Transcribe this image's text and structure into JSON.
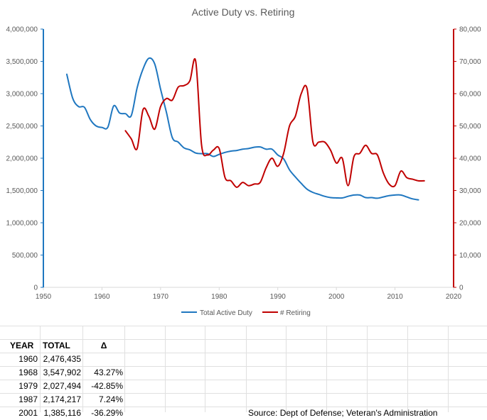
{
  "chart_data": {
    "type": "line",
    "title": "Active Duty vs. Retiring",
    "x_axis": {
      "min": 1950,
      "max": 2020,
      "ticks": [
        "1950",
        "1960",
        "1970",
        "1980",
        "1990",
        "2000",
        "2010",
        "2020"
      ]
    },
    "y_left": {
      "min": 0,
      "max": 4000000,
      "ticks": [
        "0",
        "500,000",
        "1,000,000",
        "1,500,000",
        "2,000,000",
        "2,500,000",
        "3,000,000",
        "3,500,000",
        "4,000,000"
      ]
    },
    "y_right": {
      "min": 0,
      "max": 80000,
      "ticks": [
        "0",
        "10,000",
        "20,000",
        "30,000",
        "40,000",
        "50,000",
        "60,000",
        "70,000",
        "80,000"
      ]
    },
    "series": [
      {
        "name": "Total Active Duty",
        "axis": "left",
        "color": "#1f77c0",
        "x": [
          1954,
          1955,
          1956,
          1957,
          1958,
          1959,
          1960,
          1961,
          1962,
          1963,
          1964,
          1965,
          1966,
          1967,
          1968,
          1969,
          1970,
          1971,
          1972,
          1973,
          1974,
          1975,
          1976,
          1977,
          1978,
          1979,
          1980,
          1981,
          1982,
          1983,
          1984,
          1985,
          1986,
          1987,
          1988,
          1989,
          1990,
          1991,
          1992,
          1993,
          1994,
          1995,
          1996,
          1997,
          1998,
          1999,
          2000,
          2001,
          2002,
          2003,
          2004,
          2005,
          2006,
          2007,
          2008,
          2009,
          2010,
          2011,
          2012,
          2013,
          2014
        ],
        "values": [
          3300000,
          2930000,
          2800000,
          2790000,
          2600000,
          2500000,
          2476435,
          2480000,
          2810000,
          2700000,
          2690000,
          2660000,
          3090000,
          3380000,
          3547902,
          3460000,
          3070000,
          2710000,
          2320000,
          2250000,
          2160000,
          2130000,
          2080000,
          2070000,
          2070000,
          2027494,
          2060000,
          2090000,
          2110000,
          2120000,
          2140000,
          2150000,
          2170000,
          2174217,
          2140000,
          2140000,
          2050000,
          1990000,
          1820000,
          1710000,
          1610000,
          1520000,
          1470000,
          1440000,
          1410000,
          1390000,
          1385000,
          1385116,
          1410000,
          1430000,
          1430000,
          1390000,
          1390000,
          1380000,
          1400000,
          1420000,
          1430000,
          1430000,
          1400000,
          1370000,
          1355000
        ]
      },
      {
        "name": "# Retiring",
        "axis": "right",
        "color": "#c00000",
        "x": [
          1964,
          1965,
          1966,
          1967,
          1968,
          1969,
          1970,
          1971,
          1972,
          1973,
          1974,
          1975,
          1976,
          1977,
          1978,
          1979,
          1980,
          1981,
          1982,
          1983,
          1984,
          1985,
          1986,
          1987,
          1988,
          1989,
          1990,
          1991,
          1992,
          1993,
          1994,
          1995,
          1996,
          1997,
          1998,
          1999,
          2000,
          2001,
          2002,
          2003,
          2004,
          2005,
          2006,
          2007,
          2008,
          2009,
          2010,
          2011,
          2012,
          2013,
          2014,
          2015
        ],
        "values": [
          48500,
          46000,
          43000,
          55000,
          53000,
          49000,
          56000,
          58500,
          58000,
          62000,
          62500,
          64000,
          70000,
          44000,
          41000,
          42500,
          43000,
          34000,
          33000,
          31000,
          32500,
          31500,
          32000,
          32500,
          37000,
          40000,
          37500,
          41500,
          50000,
          53000,
          60000,
          61500,
          45000,
          45000,
          45000,
          42500,
          38500,
          40000,
          31500,
          40500,
          41500,
          44000,
          41500,
          41000,
          35500,
          32000,
          31500,
          36000,
          34000,
          33500,
          33000,
          33000
        ]
      }
    ],
    "legend_position": "bottom",
    "grid": false
  },
  "table": {
    "headers": [
      "YEAR",
      "TOTAL",
      "Δ"
    ],
    "rows": [
      [
        "1960",
        "2,476,435",
        ""
      ],
      [
        "1968",
        "3,547,902",
        "43.27%"
      ],
      [
        "1979",
        "2,027,494",
        "-42.85%"
      ],
      [
        "1987",
        "2,174,217",
        "7.24%"
      ],
      [
        "2001",
        "1,385,116",
        "-36.29%"
      ]
    ]
  },
  "source_note": "Source: Dept of Defense; Veteran's Administration"
}
